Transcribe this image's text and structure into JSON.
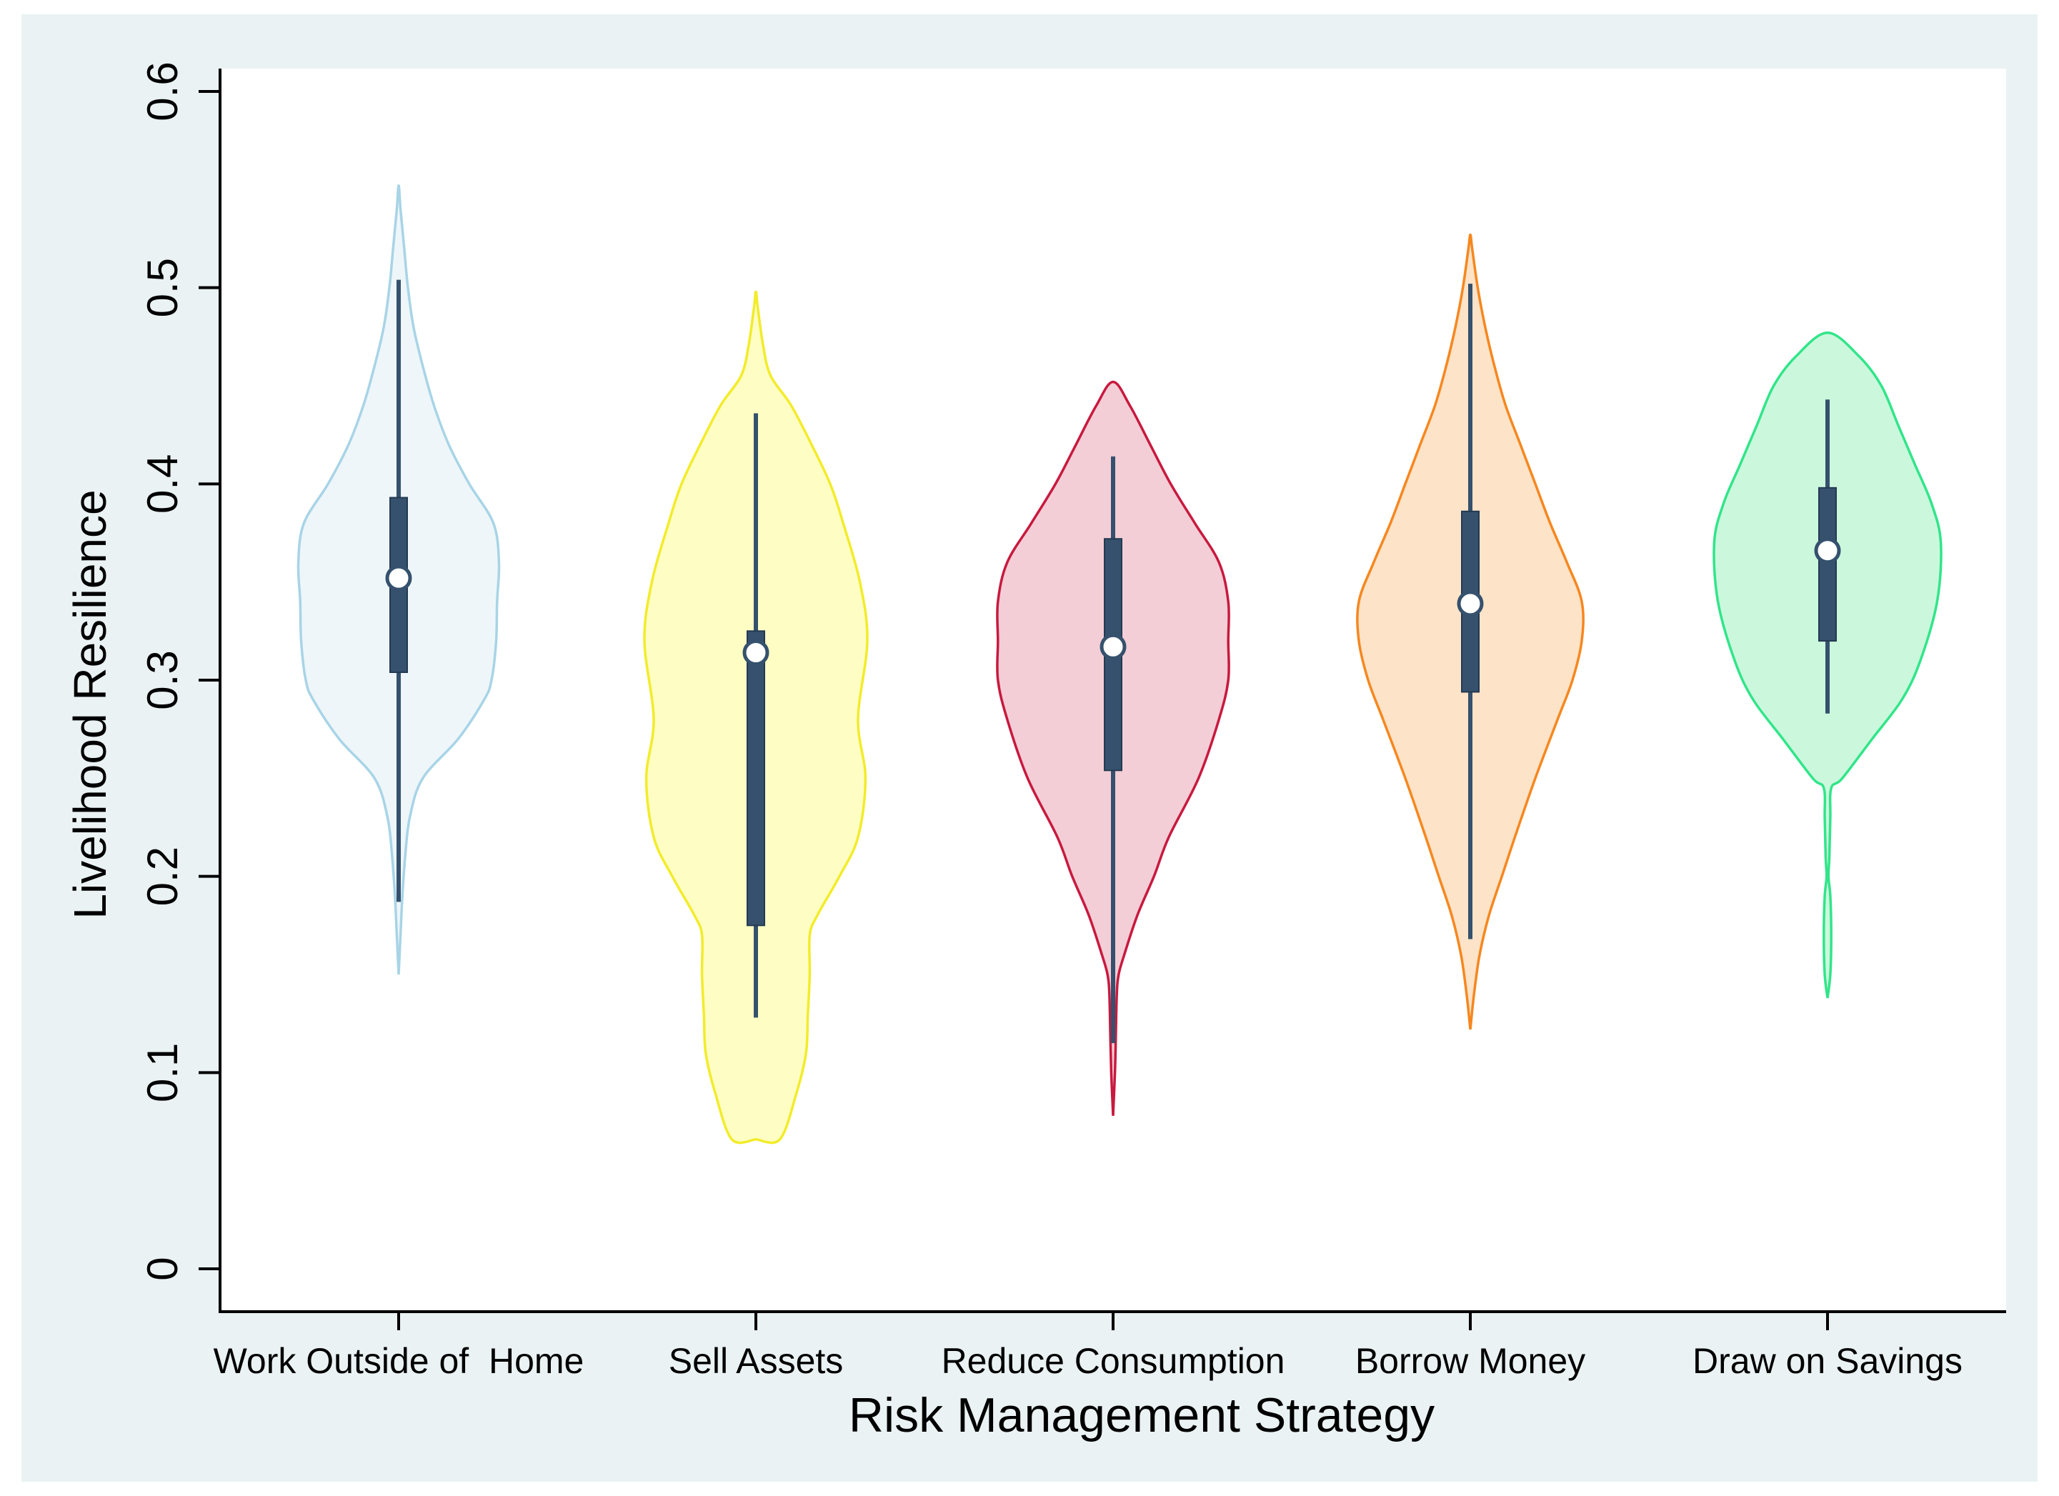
{
  "chart_data": {
    "type": "violin",
    "title": "",
    "xlabel": "Risk Management Strategy",
    "ylabel": "Livelihood Resilience",
    "ylim": [
      0,
      0.6
    ],
    "yticks": [
      {
        "value": 0,
        "label": "0"
      },
      {
        "value": 0.1,
        "label": "0.1"
      },
      {
        "value": 0.2,
        "label": "0.2"
      },
      {
        "value": 0.3,
        "label": "0.3"
      },
      {
        "value": 0.4,
        "label": "0.4"
      },
      {
        "value": 0.5,
        "label": "0.5"
      },
      {
        "value": 0.6,
        "label": "0.6"
      }
    ],
    "grid": false,
    "categories": [
      "Work Outside of  Home",
      "Sell Assets",
      "Reduce Consumption",
      "Borrow Money",
      "Draw on Savings"
    ],
    "series": [
      {
        "fill": "#eef6fa",
        "stroke": "#a8d4e6",
        "median": 0.352,
        "q1": 0.304,
        "q3": 0.393,
        "whisker_low": 0.187,
        "whisker_high": 0.504,
        "density": [
          [
            0.15,
            0.0
          ],
          [
            0.17,
            0.01
          ],
          [
            0.19,
            0.02
          ],
          [
            0.21,
            0.035
          ],
          [
            0.23,
            0.06
          ],
          [
            0.25,
            0.13
          ],
          [
            0.27,
            0.32
          ],
          [
            0.29,
            0.46
          ],
          [
            0.3,
            0.5
          ],
          [
            0.32,
            0.525
          ],
          [
            0.34,
            0.53
          ],
          [
            0.36,
            0.54
          ],
          [
            0.38,
            0.51
          ],
          [
            0.4,
            0.38
          ],
          [
            0.42,
            0.27
          ],
          [
            0.44,
            0.19
          ],
          [
            0.46,
            0.13
          ],
          [
            0.48,
            0.08
          ],
          [
            0.5,
            0.05
          ],
          [
            0.52,
            0.03
          ],
          [
            0.54,
            0.01
          ],
          [
            0.552,
            0.0
          ]
        ]
      },
      {
        "fill": "#fdfdc4",
        "stroke": "#f2ec2a",
        "median": 0.314,
        "q1": 0.175,
        "q3": 0.325,
        "whisker_low": 0.128,
        "whisker_high": 0.436,
        "density": [
          [
            0.066,
            0.0
          ],
          [
            0.066,
            0.13
          ],
          [
            0.09,
            0.22
          ],
          [
            0.11,
            0.27
          ],
          [
            0.13,
            0.28
          ],
          [
            0.15,
            0.29
          ],
          [
            0.17,
            0.29
          ],
          [
            0.18,
            0.33
          ],
          [
            0.2,
            0.45
          ],
          [
            0.22,
            0.55
          ],
          [
            0.25,
            0.59
          ],
          [
            0.28,
            0.55
          ],
          [
            0.32,
            0.6
          ],
          [
            0.35,
            0.56
          ],
          [
            0.38,
            0.47
          ],
          [
            0.4,
            0.4
          ],
          [
            0.42,
            0.3
          ],
          [
            0.44,
            0.19
          ],
          [
            0.455,
            0.08
          ],
          [
            0.47,
            0.04
          ],
          [
            0.49,
            0.01
          ],
          [
            0.498,
            0.0
          ]
        ]
      },
      {
        "fill": "#f3ced6",
        "stroke": "#c8193f",
        "median": 0.317,
        "q1": 0.254,
        "q3": 0.372,
        "whisker_low": 0.115,
        "whisker_high": 0.414,
        "density": [
          [
            0.078,
            0.0
          ],
          [
            0.1,
            0.01
          ],
          [
            0.12,
            0.015
          ],
          [
            0.14,
            0.02
          ],
          [
            0.15,
            0.03
          ],
          [
            0.16,
            0.06
          ],
          [
            0.18,
            0.13
          ],
          [
            0.2,
            0.22
          ],
          [
            0.22,
            0.3
          ],
          [
            0.25,
            0.46
          ],
          [
            0.28,
            0.57
          ],
          [
            0.3,
            0.62
          ],
          [
            0.32,
            0.62
          ],
          [
            0.34,
            0.62
          ],
          [
            0.36,
            0.57
          ],
          [
            0.38,
            0.44
          ],
          [
            0.4,
            0.31
          ],
          [
            0.42,
            0.2
          ],
          [
            0.44,
            0.09
          ],
          [
            0.452,
            0.0
          ]
        ]
      },
      {
        "fill": "#fde3c8",
        "stroke": "#f6871f",
        "median": 0.339,
        "q1": 0.294,
        "q3": 0.386,
        "whisker_low": 0.168,
        "whisker_high": 0.502,
        "density": [
          [
            0.122,
            0.0
          ],
          [
            0.14,
            0.02
          ],
          [
            0.16,
            0.05
          ],
          [
            0.18,
            0.1
          ],
          [
            0.2,
            0.17
          ],
          [
            0.22,
            0.24
          ],
          [
            0.25,
            0.35
          ],
          [
            0.28,
            0.47
          ],
          [
            0.3,
            0.55
          ],
          [
            0.32,
            0.6
          ],
          [
            0.34,
            0.6
          ],
          [
            0.36,
            0.52
          ],
          [
            0.38,
            0.43
          ],
          [
            0.4,
            0.35
          ],
          [
            0.42,
            0.27
          ],
          [
            0.44,
            0.19
          ],
          [
            0.46,
            0.13
          ],
          [
            0.48,
            0.08
          ],
          [
            0.5,
            0.04
          ],
          [
            0.52,
            0.01
          ],
          [
            0.527,
            0.0
          ]
        ]
      },
      {
        "fill": "#cbf8dc",
        "stroke": "#31e58a",
        "median": 0.366,
        "q1": 0.32,
        "q3": 0.398,
        "whisker_low": 0.283,
        "whisker_high": 0.443,
        "density": [
          [
            0.138,
            0.0
          ],
          [
            0.15,
            0.015
          ],
          [
            0.17,
            0.02
          ],
          [
            0.19,
            0.015
          ],
          [
            0.2,
            0.005
          ],
          [
            0.21,
            0.01
          ],
          [
            0.23,
            0.015
          ],
          [
            0.245,
            0.02
          ],
          [
            0.25,
            0.08
          ],
          [
            0.27,
            0.24
          ],
          [
            0.29,
            0.4
          ],
          [
            0.31,
            0.5
          ],
          [
            0.34,
            0.59
          ],
          [
            0.37,
            0.61
          ],
          [
            0.39,
            0.56
          ],
          [
            0.41,
            0.47
          ],
          [
            0.43,
            0.38
          ],
          [
            0.45,
            0.29
          ],
          [
            0.465,
            0.17
          ],
          [
            0.477,
            0.0
          ]
        ]
      }
    ],
    "box_color": "#35516d",
    "median_marker": "white-circle"
  }
}
